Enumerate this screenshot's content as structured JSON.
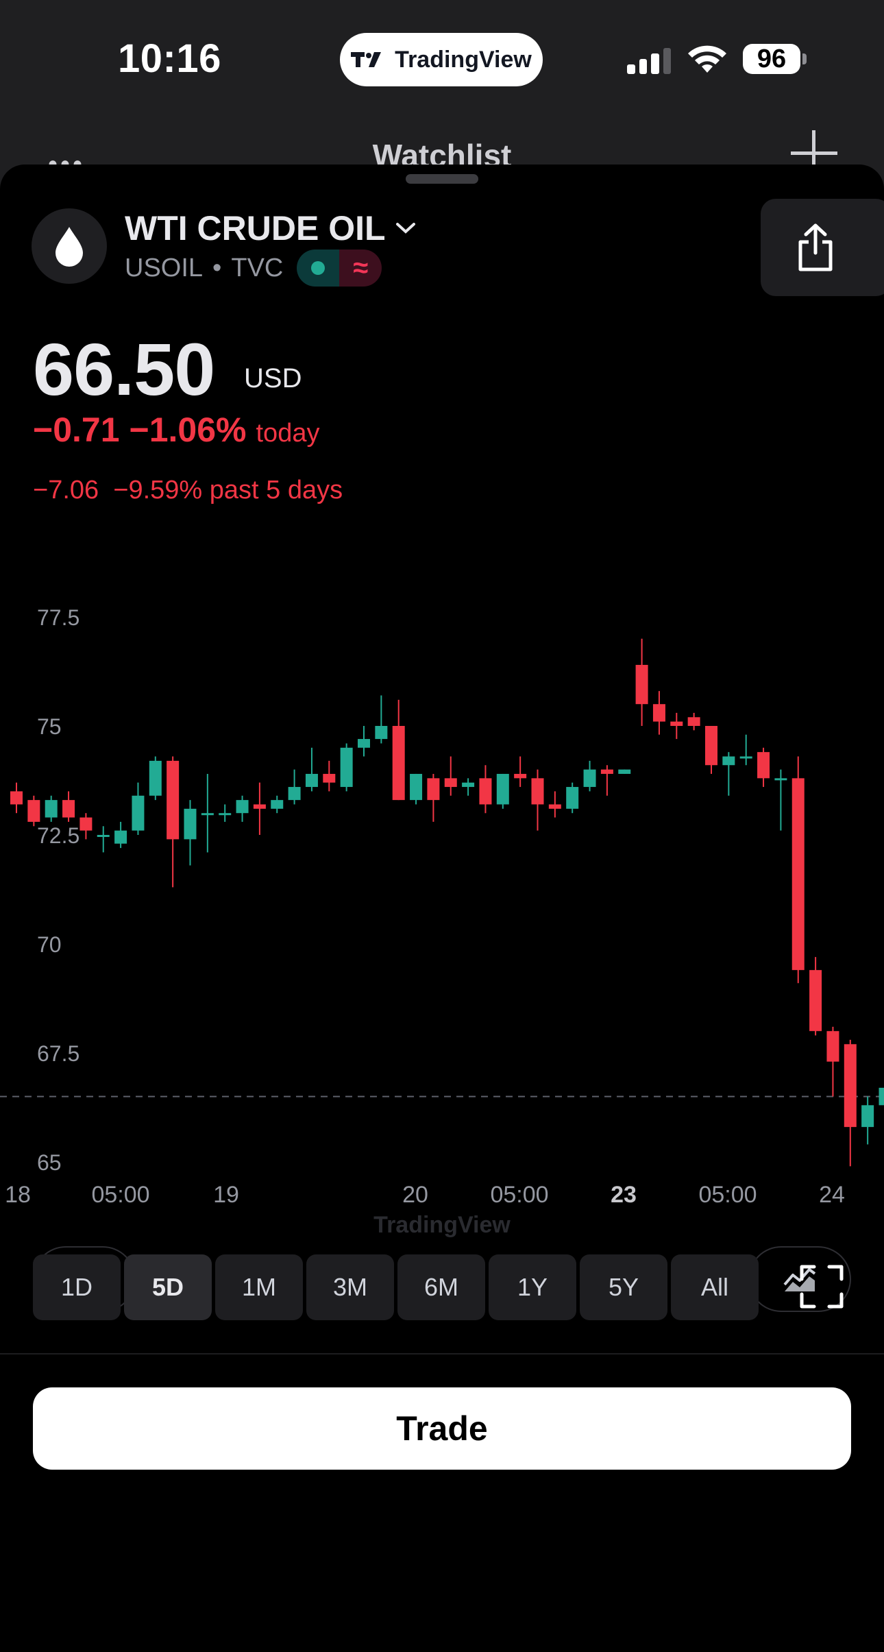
{
  "status_bar": {
    "time": "10:16",
    "app_pill": "TradingView",
    "battery": "96"
  },
  "watchlist": {
    "title": "Watchlist",
    "more_icon": "ellipsis-icon",
    "add_icon": "plus-icon"
  },
  "symbol": {
    "name": "WTI CRUDE OIL",
    "ticker": "USOIL",
    "separator": "•",
    "exchange": "TVC",
    "icon": "oil-drop-icon",
    "status_icon": "market-open-icon",
    "delay_icon": "wave-icon",
    "delay_glyph": "≈"
  },
  "quote": {
    "price": "66.50",
    "currency": "USD",
    "change_abs": "−0.71",
    "change_pct": "−1.06%",
    "change_label": "today",
    "change5": "−7.06  −9.59% past 5 days"
  },
  "colors": {
    "up": "#22ab94",
    "down": "#f23645",
    "background": "#000000",
    "text_muted": "#9598a1"
  },
  "chart_data": {
    "type": "candlestick",
    "watermark": "TradingView",
    "y_ticks": [
      "77.5",
      "75",
      "72.5",
      "70",
      "67.5",
      "65"
    ],
    "y_tick_values": [
      77.5,
      75,
      72.5,
      70,
      67.5,
      65
    ],
    "ylim": [
      63.5,
      78.5
    ],
    "last_price_line": 66.5,
    "x_ticks": [
      {
        "label": "18",
        "bold": false
      },
      {
        "label": "05:00",
        "bold": false
      },
      {
        "label": "19",
        "bold": false
      },
      {
        "label": "20",
        "bold": false
      },
      {
        "label": "05:00",
        "bold": false
      },
      {
        "label": "23",
        "bold": true
      },
      {
        "label": "05:00",
        "bold": false
      },
      {
        "label": "24",
        "bold": false
      }
    ],
    "candles": [
      [
        73.5,
        73.2,
        73.7,
        73.0
      ],
      [
        73.3,
        72.8,
        73.4,
        72.7
      ],
      [
        72.9,
        73.3,
        73.4,
        72.8
      ],
      [
        73.3,
        72.9,
        73.5,
        72.8
      ],
      [
        72.9,
        72.6,
        73.0,
        72.4
      ],
      [
        72.5,
        72.5,
        72.7,
        72.1
      ],
      [
        72.3,
        72.6,
        72.8,
        72.2
      ],
      [
        72.6,
        73.4,
        73.7,
        72.5
      ],
      [
        73.4,
        74.2,
        74.3,
        73.3
      ],
      [
        74.2,
        72.4,
        74.3,
        71.3
      ],
      [
        72.4,
        73.1,
        73.3,
        71.8
      ],
      [
        73.0,
        73.0,
        73.9,
        72.1
      ],
      [
        73.0,
        73.0,
        73.2,
        72.8
      ],
      [
        73.0,
        73.3,
        73.4,
        72.8
      ],
      [
        73.2,
        73.1,
        73.7,
        72.5
      ],
      [
        73.1,
        73.3,
        73.4,
        73.0
      ],
      [
        73.3,
        73.6,
        74.0,
        73.2
      ],
      [
        73.6,
        73.9,
        74.5,
        73.5
      ],
      [
        73.9,
        73.7,
        74.2,
        73.5
      ],
      [
        73.6,
        74.5,
        74.6,
        73.5
      ],
      [
        74.5,
        74.7,
        75.0,
        74.3
      ],
      [
        74.7,
        75.0,
        75.7,
        74.6
      ],
      [
        75.0,
        73.3,
        75.6,
        73.3
      ],
      [
        73.3,
        73.9,
        73.9,
        73.2
      ],
      [
        73.8,
        73.3,
        73.9,
        72.8
      ],
      [
        73.8,
        73.6,
        74.3,
        73.4
      ],
      [
        73.6,
        73.7,
        73.8,
        73.4
      ],
      [
        73.8,
        73.2,
        74.1,
        73.0
      ],
      [
        73.2,
        73.9,
        73.9,
        73.1
      ],
      [
        73.9,
        73.8,
        74.3,
        73.6
      ],
      [
        73.8,
        73.2,
        74.0,
        72.6
      ],
      [
        73.2,
        73.1,
        73.5,
        72.9
      ],
      [
        73.1,
        73.6,
        73.7,
        73.0
      ],
      [
        73.6,
        74.0,
        74.2,
        73.5
      ],
      [
        74.0,
        73.9,
        74.1,
        73.4
      ],
      [
        73.9,
        74.0,
        74.0,
        73.9
      ],
      [
        76.4,
        75.5,
        77.0,
        75.0
      ],
      [
        75.5,
        75.1,
        75.8,
        74.8
      ],
      [
        75.1,
        75.0,
        75.3,
        74.7
      ],
      [
        75.2,
        75.0,
        75.3,
        74.9
      ],
      [
        75.0,
        74.1,
        75.0,
        73.9
      ],
      [
        74.1,
        74.3,
        74.4,
        73.4
      ],
      [
        74.3,
        74.3,
        74.8,
        74.1
      ],
      [
        74.4,
        73.8,
        74.5,
        73.6
      ],
      [
        73.8,
        73.8,
        74.0,
        72.6
      ],
      [
        73.8,
        69.4,
        74.3,
        69.1
      ],
      [
        69.4,
        68.0,
        69.7,
        67.9
      ],
      [
        68.0,
        67.3,
        68.1,
        66.5
      ],
      [
        67.7,
        65.8,
        67.8,
        64.9
      ],
      [
        65.8,
        66.3,
        66.5,
        65.4
      ],
      [
        66.3,
        66.7,
        66.9,
        66.0
      ],
      [
        66.7,
        66.4,
        66.8,
        66.4
      ]
    ],
    "grid": false
  },
  "buttons": {
    "alert_icon": "alarm-plus-icon",
    "indicators_icon": "chart-type-icon",
    "share_icon": "share-icon",
    "fullscreen_icon": "fullscreen-icon",
    "trade": "Trade"
  },
  "periods": [
    {
      "label": "1D",
      "active": false
    },
    {
      "label": "5D",
      "active": true
    },
    {
      "label": "1M",
      "active": false
    },
    {
      "label": "3M",
      "active": false
    },
    {
      "label": "6M",
      "active": false
    },
    {
      "label": "1Y",
      "active": false
    },
    {
      "label": "5Y",
      "active": false
    },
    {
      "label": "All",
      "active": false
    }
  ]
}
